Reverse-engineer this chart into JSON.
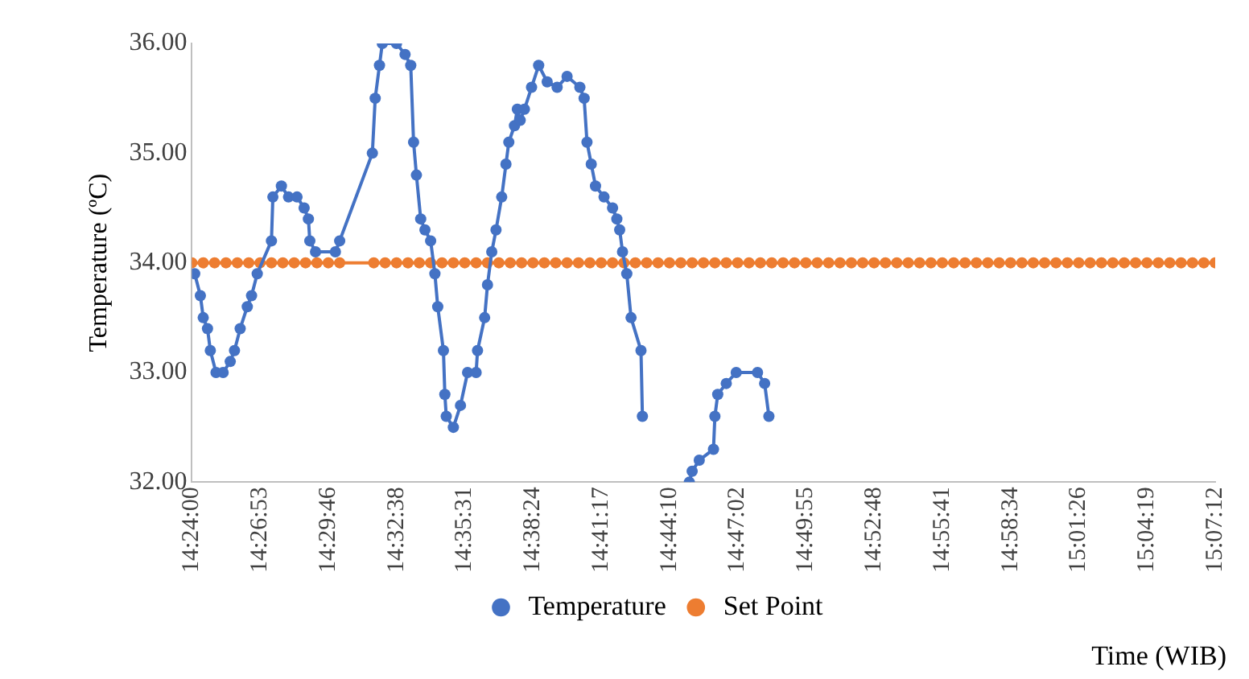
{
  "chart_data": {
    "type": "line",
    "xlabel": "Time (WIB)",
    "ylabel": "Temperature (ºC)",
    "xlim": [
      14.4,
      15.12
    ],
    "xticks": [
      {
        "value": 14.4,
        "label": "14:24:00"
      },
      {
        "value": 14.448,
        "label": "14:26:53"
      },
      {
        "value": 14.496,
        "label": "14:29:46"
      },
      {
        "value": 14.544,
        "label": "14:32:38"
      },
      {
        "value": 14.592,
        "label": "14:35:31"
      },
      {
        "value": 14.64,
        "label": "14:38:24"
      },
      {
        "value": 14.688,
        "label": "14:41:17"
      },
      {
        "value": 14.736,
        "label": "14:44:10"
      },
      {
        "value": 14.784,
        "label": "14:47:02"
      },
      {
        "value": 14.832,
        "label": "14:49:55"
      },
      {
        "value": 14.88,
        "label": "14:52:48"
      },
      {
        "value": 14.928,
        "label": "14:55:41"
      },
      {
        "value": 14.976,
        "label": "14:58:34"
      },
      {
        "value": 15.024,
        "label": "15:01:26"
      },
      {
        "value": 15.072,
        "label": "15:04:19"
      },
      {
        "value": 15.12,
        "label": "15:07:12"
      }
    ],
    "ylim": [
      32,
      36
    ],
    "yticks": [
      {
        "value": 32,
        "label": "32.00"
      },
      {
        "value": 33,
        "label": "33.00"
      },
      {
        "value": 34,
        "label": "34.00"
      },
      {
        "value": 35,
        "label": "35.00"
      },
      {
        "value": 36,
        "label": "36.00"
      }
    ],
    "grid": false,
    "legend": "bottom",
    "marker": "circle",
    "line_style": "solid",
    "series": [
      {
        "name": "Temperature",
        "color": "#4472c4",
        "x": [
          14.402,
          14.406,
          14.408,
          14.411,
          14.413,
          14.417,
          14.422,
          14.427,
          14.43,
          14.434,
          14.439,
          14.442,
          14.446,
          14.456,
          14.457,
          14.463,
          14.468,
          14.474,
          14.479,
          14.482,
          14.483,
          14.487,
          14.501,
          14.504,
          14.527,
          14.529,
          14.532,
          14.534,
          14.544,
          14.55,
          14.554,
          14.556,
          14.558,
          14.561,
          14.564,
          14.568,
          14.571,
          14.573,
          14.577,
          14.578,
          14.579,
          14.584,
          14.589,
          14.594,
          14.6,
          14.601,
          14.606,
          14.608,
          14.611,
          14.614,
          14.618,
          14.621,
          14.623,
          14.627,
          14.629,
          14.631,
          14.634,
          14.639,
          14.644,
          14.65,
          14.657,
          14.664,
          14.673,
          14.676,
          14.678,
          14.681,
          14.684,
          14.69,
          14.696,
          14.699,
          14.701,
          14.703,
          14.706,
          14.709,
          14.716,
          14.717,
          14.722,
          14.75,
          14.752,
          14.757,
          14.767,
          14.768,
          14.77,
          14.776,
          14.783,
          14.798,
          14.803,
          14.806
        ],
        "values": [
          33.9,
          33.7,
          33.5,
          33.4,
          33.2,
          33.0,
          33.0,
          33.1,
          33.2,
          33.4,
          33.6,
          33.7,
          33.9,
          34.2,
          34.6,
          34.7,
          34.6,
          34.6,
          34.5,
          34.4,
          34.2,
          34.1,
          34.1,
          34.2,
          35.0,
          35.5,
          35.8,
          36.0,
          36.0,
          35.9,
          35.8,
          35.1,
          34.8,
          34.4,
          34.3,
          34.2,
          33.9,
          33.6,
          33.2,
          32.8,
          32.6,
          32.5,
          32.7,
          33.0,
          33.0,
          33.2,
          33.5,
          33.8,
          34.1,
          34.3,
          34.6,
          34.9,
          35.1,
          35.25,
          35.4,
          35.3,
          35.4,
          35.6,
          35.8,
          35.65,
          35.6,
          35.7,
          35.6,
          35.5,
          35.1,
          34.9,
          34.7,
          34.6,
          34.5,
          34.4,
          34.3,
          34.1,
          33.9,
          33.5,
          33.2,
          32.6,
          null,
          32.0,
          32.1,
          32.2,
          32.3,
          32.6,
          32.8,
          32.9,
          33.0,
          33.0,
          32.9,
          32.6
        ]
      },
      {
        "name": "Set Point",
        "color": "#ed7d31",
        "x": [
          14.4,
          14.408,
          14.416,
          14.424,
          14.432,
          14.44,
          14.448,
          14.456,
          14.464,
          14.472,
          14.48,
          14.488,
          14.496,
          14.504,
          14.528,
          14.536,
          14.544,
          14.552,
          14.56,
          14.568,
          14.576,
          14.584,
          14.592,
          14.6,
          14.608,
          14.616,
          14.624,
          14.632,
          14.64,
          14.648,
          14.656,
          14.664,
          14.672,
          14.68,
          14.688,
          14.696,
          14.704,
          14.712,
          14.72,
          14.728,
          14.736,
          14.744,
          14.752,
          14.76,
          14.768,
          14.776,
          14.784,
          14.792,
          14.8,
          14.808,
          14.816,
          14.824,
          14.832,
          14.84,
          14.848,
          14.856,
          14.864,
          14.872,
          14.88,
          14.888,
          14.896,
          14.904,
          14.912,
          14.92,
          14.928,
          14.936,
          14.944,
          14.952,
          14.96,
          14.968,
          14.976,
          14.984,
          14.992,
          15.0,
          15.008,
          15.016,
          15.024,
          15.032,
          15.04,
          15.048,
          15.056,
          15.064,
          15.072,
          15.08,
          15.088,
          15.096,
          15.104,
          15.112,
          15.12
        ],
        "values": [
          34,
          34,
          34,
          34,
          34,
          34,
          34,
          34,
          34,
          34,
          34,
          34,
          34,
          34,
          34,
          34,
          34,
          34,
          34,
          34,
          34,
          34,
          34,
          34,
          34,
          34,
          34,
          34,
          34,
          34,
          34,
          34,
          34,
          34,
          34,
          34,
          34,
          34,
          34,
          34,
          34,
          34,
          34,
          34,
          34,
          34,
          34,
          34,
          34,
          34,
          34,
          34,
          34,
          34,
          34,
          34,
          34,
          34,
          34,
          34,
          34,
          34,
          34,
          34,
          34,
          34,
          34,
          34,
          34,
          34,
          34,
          34,
          34,
          34,
          34,
          34,
          34,
          34,
          34,
          34,
          34,
          34,
          34,
          34,
          34,
          34,
          34,
          34,
          34
        ]
      }
    ]
  }
}
